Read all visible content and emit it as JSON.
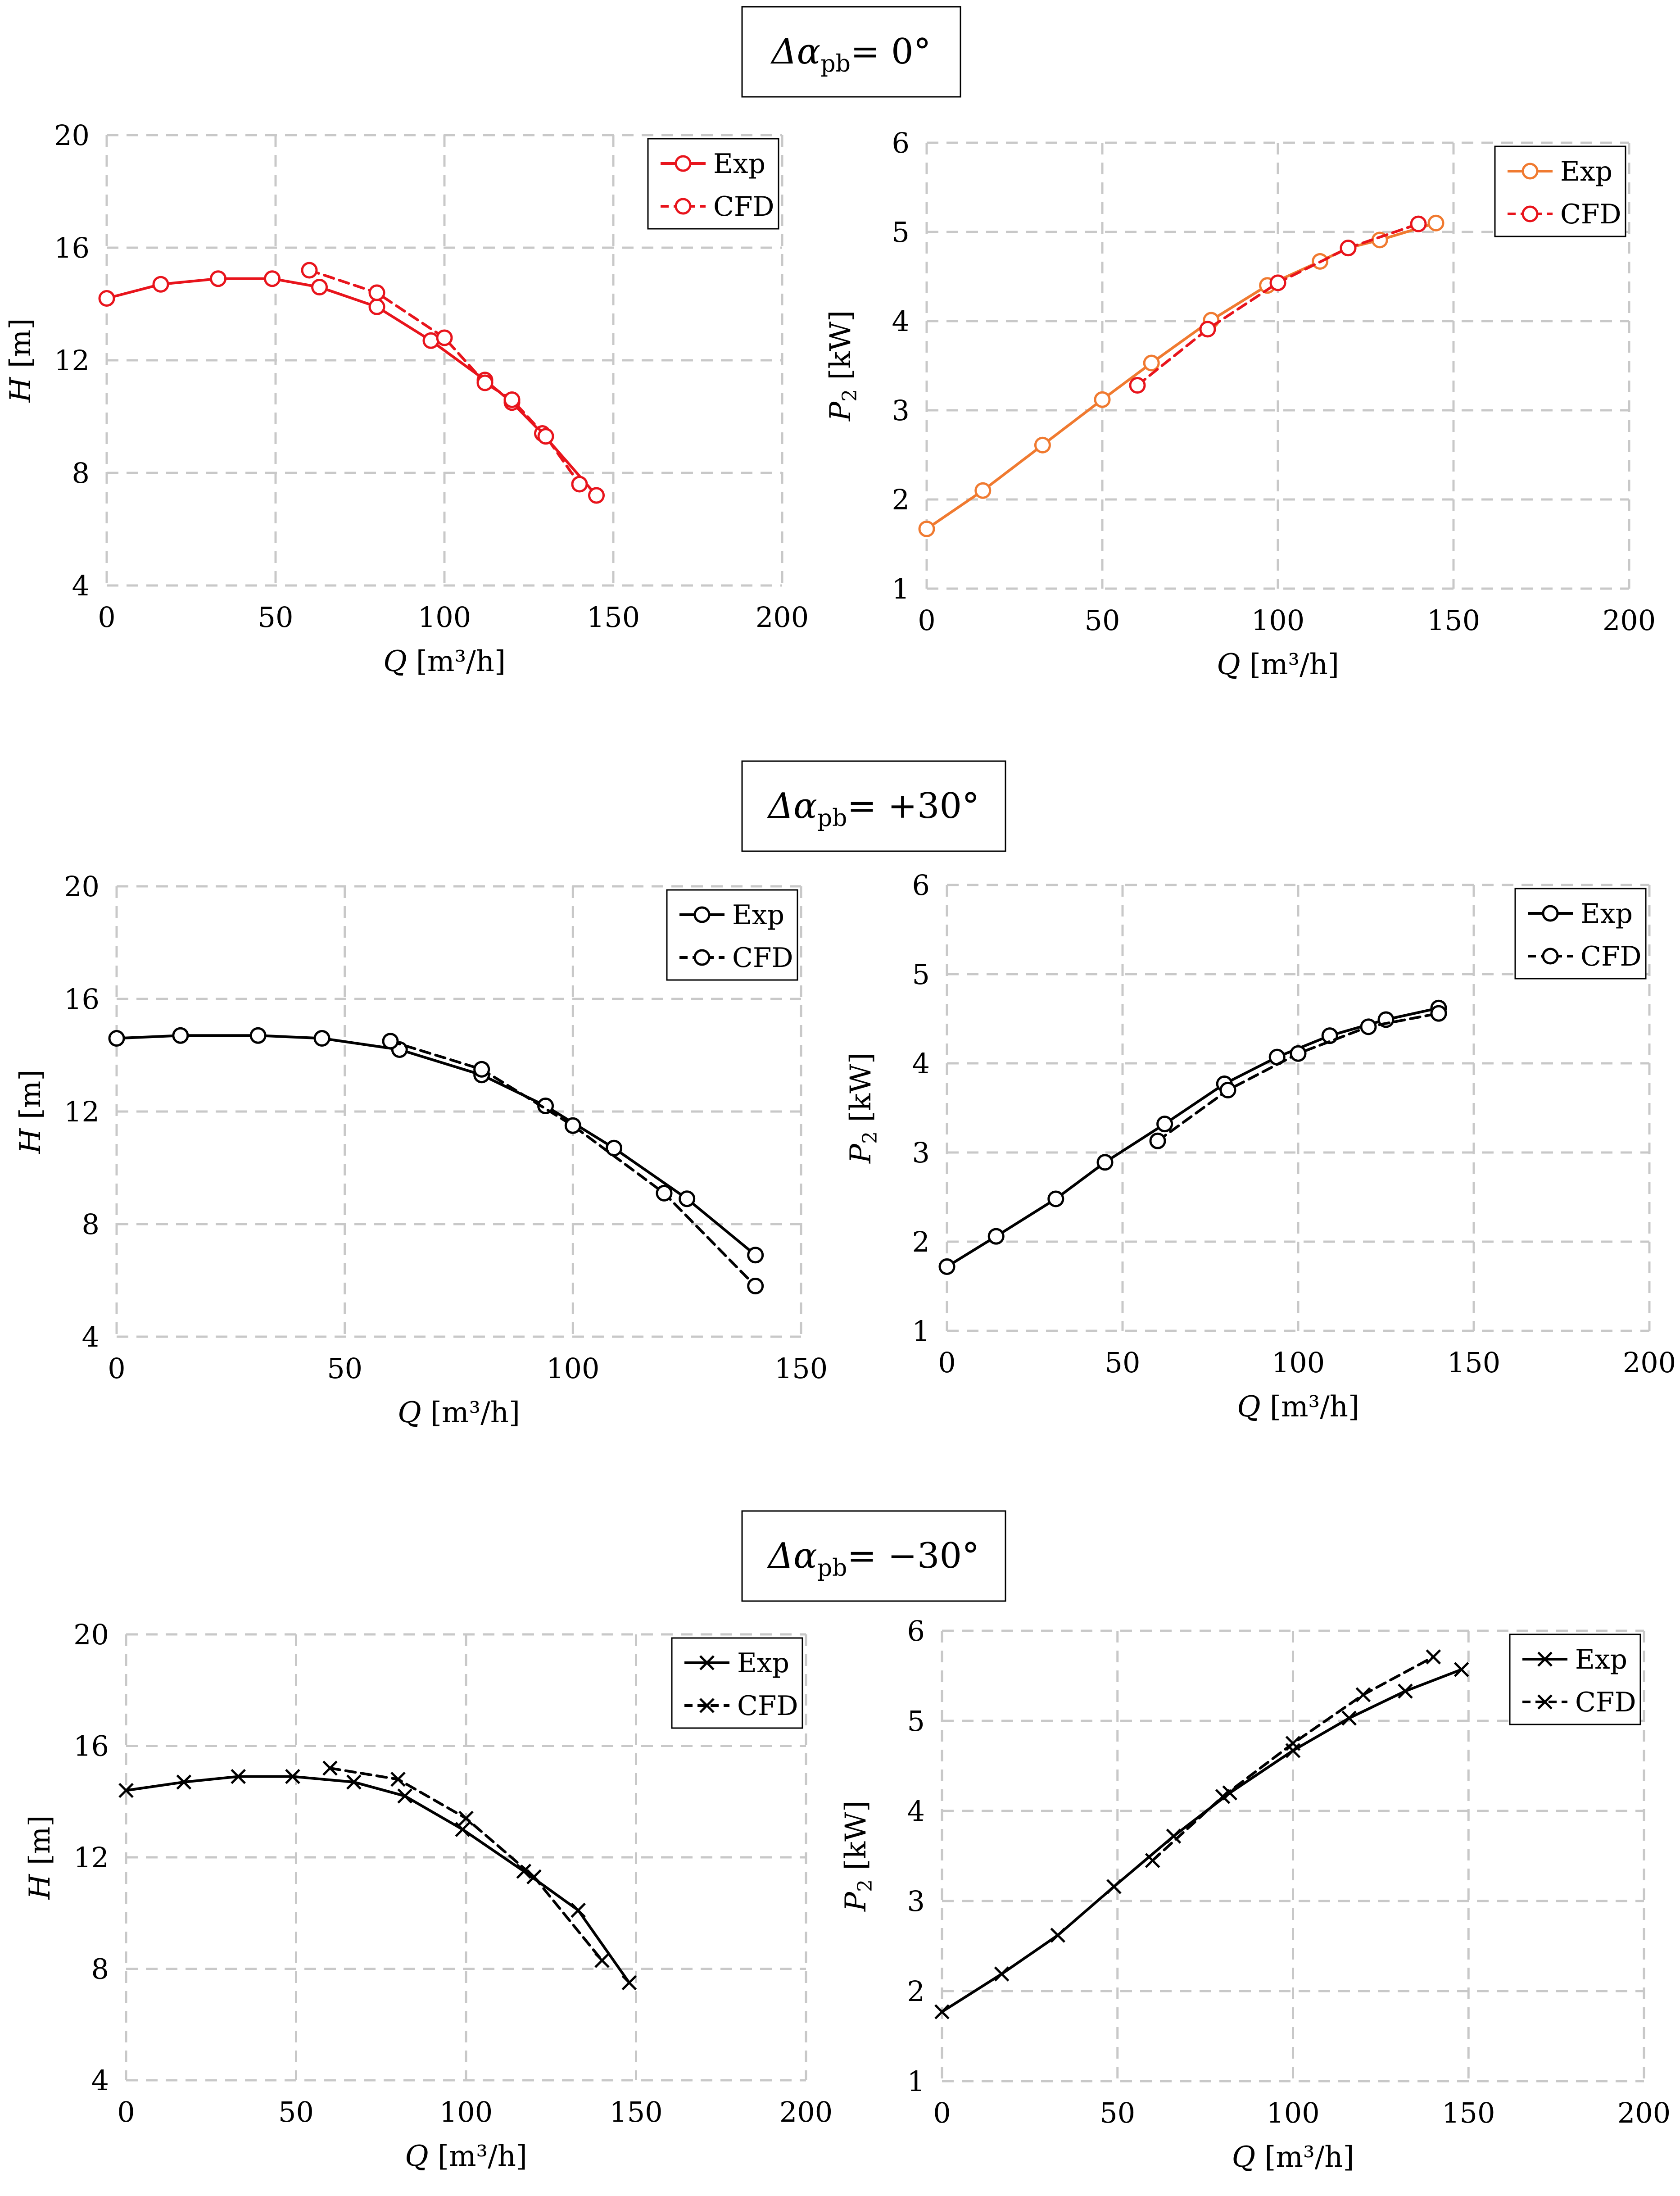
{
  "sections": [
    {
      "label_symbol": "Δα",
      "label_sub": "pb",
      "label_value": "= 0°"
    },
    {
      "label_symbol": "Δα",
      "label_sub": "pb",
      "label_value": "= +30°"
    },
    {
      "label_symbol": "Δα",
      "label_sub": "pb",
      "label_value": "= −30°"
    }
  ],
  "colors": {
    "red": "#e8141c",
    "orange": "#f07a30",
    "black": "#000000",
    "grid": "#c8c8c8"
  },
  "chart_data": [
    {
      "type": "line",
      "section": 0,
      "panel": "head",
      "xlabel_var": "Q",
      "xlabel_unit": "[m³/h]",
      "ylabel_var": "H",
      "ylabel_unit": "[m]",
      "xlim": [
        0,
        200
      ],
      "ylim": [
        4,
        20
      ],
      "xticks": [
        "0",
        "50",
        "100",
        "150",
        "200"
      ],
      "yticks": [
        "4",
        "8",
        "12",
        "16",
        "20"
      ],
      "marker": "circle",
      "legend_position": "top-right",
      "series": [
        {
          "name": "Exp",
          "color": "#e8141c",
          "dash": "solid",
          "x": [
            0,
            16,
            33,
            49,
            63,
            80,
            96,
            112,
            120,
            129,
            145
          ],
          "y": [
            14.2,
            14.7,
            14.9,
            14.9,
            14.6,
            13.9,
            12.7,
            11.3,
            10.5,
            9.4,
            7.2
          ]
        },
        {
          "name": "CFD",
          "color": "#e8141c",
          "dash": "dashed",
          "x": [
            60,
            80,
            100,
            112,
            120,
            130,
            140
          ],
          "y": [
            15.2,
            14.4,
            12.8,
            11.2,
            10.6,
            9.3,
            7.6
          ]
        }
      ]
    },
    {
      "type": "line",
      "section": 0,
      "panel": "power",
      "xlabel_var": "Q",
      "xlabel_unit": "[m³/h]",
      "ylabel_var": "P",
      "ylabel_sub": "2",
      "ylabel_unit": "[kW]",
      "xlim": [
        0,
        200
      ],
      "ylim": [
        1,
        6
      ],
      "xticks": [
        "0",
        "50",
        "100",
        "150",
        "200"
      ],
      "yticks": [
        "1",
        "2",
        "3",
        "4",
        "5",
        "6"
      ],
      "marker": "circle",
      "legend_position": "top-right",
      "series": [
        {
          "name": "Exp",
          "color": "#f07a30",
          "dash": "solid",
          "x": [
            0,
            16,
            33,
            50,
            64,
            81,
            97,
            112,
            120,
            129,
            145
          ],
          "y": [
            1.67,
            2.1,
            2.61,
            3.12,
            3.53,
            4.01,
            4.4,
            4.67,
            4.82,
            4.91,
            5.1
          ]
        },
        {
          "name": "CFD",
          "color": "#e8141c",
          "dash": "dashed",
          "x": [
            60,
            80,
            100,
            120,
            140
          ],
          "y": [
            3.28,
            3.91,
            4.43,
            4.82,
            5.09
          ]
        }
      ]
    },
    {
      "type": "line",
      "section": 1,
      "panel": "head",
      "xlabel_var": "Q",
      "xlabel_unit": "[m³/h]",
      "ylabel_var": "H",
      "ylabel_unit": "[m]",
      "xlim": [
        0,
        150
      ],
      "ylim": [
        4,
        20
      ],
      "xticks": [
        "0",
        "50",
        "100",
        "150"
      ],
      "yticks": [
        "4",
        "8",
        "12",
        "16",
        "20"
      ],
      "marker": "circle",
      "legend_position": "top-right",
      "series": [
        {
          "name": "Exp",
          "color": "#000000",
          "dash": "solid",
          "x": [
            0,
            14,
            31,
            45,
            62,
            80,
            94,
            109,
            125,
            140
          ],
          "y": [
            14.6,
            14.7,
            14.7,
            14.6,
            14.2,
            13.3,
            12.2,
            10.7,
            8.9,
            6.9
          ]
        },
        {
          "name": "CFD",
          "color": "#000000",
          "dash": "dashed",
          "x": [
            60,
            80,
            100,
            120,
            140
          ],
          "y": [
            14.5,
            13.5,
            11.5,
            9.1,
            5.8
          ]
        }
      ]
    },
    {
      "type": "line",
      "section": 1,
      "panel": "power",
      "xlabel_var": "Q",
      "xlabel_unit": "[m³/h]",
      "ylabel_var": "P",
      "ylabel_sub": "2",
      "ylabel_unit": "[kW]",
      "xlim": [
        0,
        200
      ],
      "ylim": [
        1,
        6
      ],
      "xticks": [
        "0",
        "50",
        "100",
        "150",
        "200"
      ],
      "yticks": [
        "1",
        "2",
        "3",
        "4",
        "5",
        "6"
      ],
      "marker": "circle",
      "legend_position": "top-right",
      "series": [
        {
          "name": "Exp",
          "color": "#000000",
          "dash": "solid",
          "x": [
            0,
            14,
            31,
            45,
            62,
            79,
            94,
            109,
            125,
            140
          ],
          "y": [
            1.72,
            2.06,
            2.48,
            2.89,
            3.32,
            3.77,
            4.07,
            4.31,
            4.49,
            4.62
          ]
        },
        {
          "name": "CFD",
          "color": "#000000",
          "dash": "dashed",
          "x": [
            60,
            80,
            100,
            120,
            140
          ],
          "y": [
            3.13,
            3.7,
            4.11,
            4.41,
            4.56
          ]
        }
      ]
    },
    {
      "type": "line",
      "section": 2,
      "panel": "head",
      "xlabel_var": "Q",
      "xlabel_unit": "[m³/h]",
      "ylabel_var": "H",
      "ylabel_unit": "[m]",
      "xlim": [
        0,
        200
      ],
      "ylim": [
        4,
        20
      ],
      "xticks": [
        "0",
        "50",
        "100",
        "150",
        "200"
      ],
      "yticks": [
        "4",
        "8",
        "12",
        "16",
        "20"
      ],
      "marker": "cross",
      "legend_position": "top-right",
      "series": [
        {
          "name": "Exp",
          "color": "#000000",
          "dash": "solid",
          "x": [
            0,
            17,
            33,
            49,
            67,
            82,
            99,
            117,
            133,
            148
          ],
          "y": [
            14.4,
            14.7,
            14.9,
            14.9,
            14.7,
            14.2,
            13.0,
            11.5,
            10.1,
            7.5
          ]
        },
        {
          "name": "CFD",
          "color": "#000000",
          "dash": "dashed",
          "x": [
            60,
            80,
            100,
            120,
            140
          ],
          "y": [
            15.2,
            14.8,
            13.4,
            11.3,
            8.3
          ]
        }
      ]
    },
    {
      "type": "line",
      "section": 2,
      "panel": "power",
      "xlabel_var": "Q",
      "xlabel_unit": "[m³/h]",
      "ylabel_var": "P",
      "ylabel_sub": "2",
      "ylabel_unit": "[kW]",
      "xlim": [
        0,
        200
      ],
      "ylim": [
        1,
        6
      ],
      "xticks": [
        "0",
        "50",
        "100",
        "150",
        "200"
      ],
      "yticks": [
        "1",
        "2",
        "3",
        "4",
        "5",
        "6"
      ],
      "marker": "cross",
      "legend_position": "top-right",
      "series": [
        {
          "name": "Exp",
          "color": "#000000",
          "dash": "solid",
          "x": [
            0,
            17,
            33,
            49,
            66,
            82,
            100,
            116,
            132,
            148
          ],
          "y": [
            1.77,
            2.19,
            2.62,
            3.16,
            3.72,
            4.2,
            4.67,
            5.03,
            5.33,
            5.57
          ]
        },
        {
          "name": "CFD",
          "color": "#000000",
          "dash": "dashed",
          "x": [
            60,
            80,
            100,
            120,
            140
          ],
          "y": [
            3.45,
            4.16,
            4.75,
            5.29,
            5.71
          ]
        }
      ]
    }
  ]
}
